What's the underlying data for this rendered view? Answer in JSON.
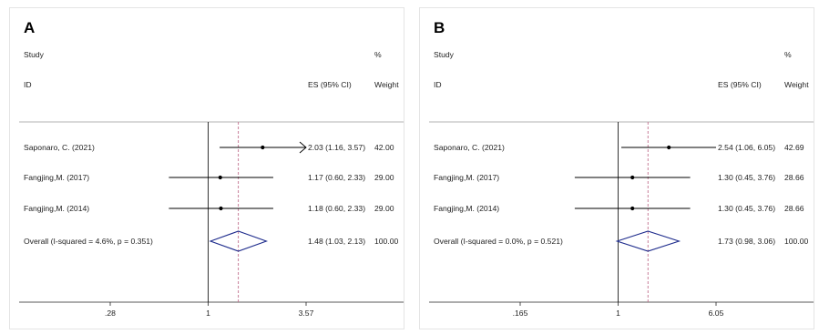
{
  "chart_data": [
    {
      "type": "forest",
      "panel_label": "A",
      "x_scale": "log",
      "headers": {
        "study_top": "Study",
        "study_bottom": "ID",
        "es": "ES (95% CI)",
        "weight_top": "%",
        "weight_bottom": "Weight"
      },
      "studies": [
        {
          "name": "Saponaro, C.  (2021)",
          "es": 2.03,
          "lower": 1.16,
          "upper": 3.57,
          "es_text": "2.03 (1.16, 3.57)",
          "weight": "42.00",
          "arrow_right": true
        },
        {
          "name": "Fangjing,M.  (2017)",
          "es": 1.17,
          "lower": 0.6,
          "upper": 2.33,
          "es_text": "1.17 (0.60, 2.33)",
          "weight": "29.00",
          "arrow_right": false
        },
        {
          "name": "Fangjing,M.  (2014)",
          "es": 1.18,
          "lower": 0.6,
          "upper": 2.33,
          "es_text": "1.18 (0.60, 2.33)",
          "weight": "29.00",
          "arrow_right": false
        }
      ],
      "overall": {
        "name": "Overall  (I-squared = 4.6%, p = 0.351)",
        "es": 1.48,
        "lower": 1.03,
        "upper": 2.13,
        "es_text": "1.48 (1.03, 2.13)",
        "weight": "100.00"
      },
      "null_value": 1,
      "xlim": [
        0.28,
        3.57
      ],
      "x_ticks": [
        {
          "value": 0.28,
          "label": ".28"
        },
        {
          "value": 1,
          "label": "1"
        },
        {
          "value": 3.57,
          "label": "3.57"
        }
      ],
      "colors": {
        "line": "#000000",
        "dashed": "#c2708e",
        "diamond": "#1d2b8c"
      }
    },
    {
      "type": "forest",
      "panel_label": "B",
      "x_scale": "log",
      "headers": {
        "study_top": "Study",
        "study_bottom": "ID",
        "es": "ES (95% CI)",
        "weight_top": "%",
        "weight_bottom": "Weight"
      },
      "studies": [
        {
          "name": "Saponaro, C.  (2021)",
          "es": 2.54,
          "lower": 1.06,
          "upper": 6.05,
          "es_text": "2.54 (1.06, 6.05)",
          "weight": "42.69",
          "arrow_right": false
        },
        {
          "name": "Fangjing,M.  (2017)",
          "es": 1.3,
          "lower": 0.45,
          "upper": 3.76,
          "es_text": "1.30 (0.45, 3.76)",
          "weight": "28.66",
          "arrow_right": false
        },
        {
          "name": "Fangjing,M.  (2014)",
          "es": 1.3,
          "lower": 0.45,
          "upper": 3.76,
          "es_text": "1.30 (0.45, 3.76)",
          "weight": "28.66",
          "arrow_right": false
        }
      ],
      "overall": {
        "name": "Overall  (I-squared = 0.0%, p = 0.521)",
        "es": 1.73,
        "lower": 0.98,
        "upper": 3.06,
        "es_text": "1.73 (0.98, 3.06)",
        "weight": "100.00"
      },
      "null_value": 1,
      "xlim": [
        0.165,
        6.05
      ],
      "x_ticks": [
        {
          "value": 0.165,
          "label": ".165"
        },
        {
          "value": 1,
          "label": "1"
        },
        {
          "value": 6.05,
          "label": "6.05"
        }
      ],
      "colors": {
        "line": "#000000",
        "dashed": "#c2708e",
        "diamond": "#1d2b8c"
      }
    }
  ]
}
